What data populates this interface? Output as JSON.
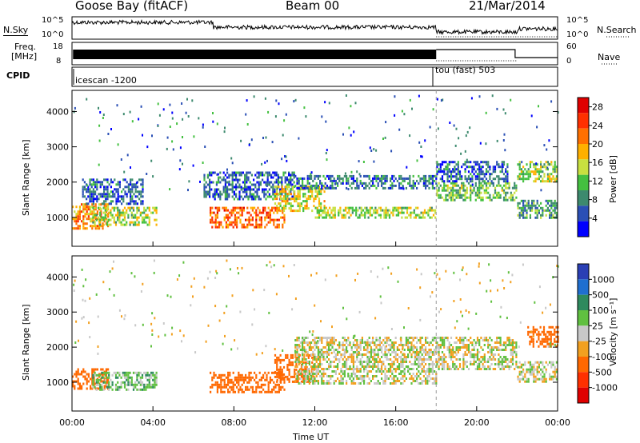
{
  "header": {
    "station": "Goose Bay (fitACF)",
    "beam": "Beam 00",
    "date": "21/Mar/2014"
  },
  "noise_panel": {
    "left_label": "N.Sky",
    "left_ticks": [
      "10^5",
      "10^0"
    ],
    "right_label": "N.Search",
    "right_ticks": [
      "10^5",
      "10^0"
    ]
  },
  "freq_panel": {
    "left_label_1": "Freq.",
    "left_label_2": "[MHz]",
    "left_ticks": [
      "18",
      "8"
    ],
    "right_label": "Nave",
    "right_ticks": [
      "60",
      "0"
    ]
  },
  "cpid_panel": {
    "label": "CPID",
    "segments": [
      {
        "name": "icescan -1200",
        "start_hour": 0
      },
      {
        "name": "tou (fast) 503",
        "start_hour": 18
      }
    ]
  },
  "colors": {
    "power_scale": [
      "#0000ff",
      "#2a4fb5",
      "#3d8a6e",
      "#44c040",
      "#c8e040",
      "#ffb000",
      "#ff7000",
      "#ff3000",
      "#e00000"
    ],
    "velocity_scale": [
      "#2a3fb5",
      "#1f6fd0",
      "#2e8a5e",
      "#60c040",
      "#c8c8c8",
      "#f2a020",
      "#ff6800",
      "#ff3000",
      "#e00000"
    ]
  },
  "chart_data": [
    {
      "type": "heatmap",
      "panel": "power",
      "xlabel": "Time UT",
      "ylabel": "Slant Range [km]",
      "xlim": [
        0,
        24
      ],
      "ylim": [
        180,
        4600
      ],
      "x_ticks": [
        "00:00",
        "04:00",
        "08:00",
        "12:00",
        "16:00",
        "20:00",
        "00:00"
      ],
      "y_ticks": [
        "1000",
        "2000",
        "3000",
        "4000"
      ],
      "colorbar_label": "Power [dB]",
      "colorbar_ticks": [
        "4",
        "8",
        "12",
        "16",
        "20",
        "24",
        "28"
      ],
      "colorbar_range": [
        0,
        30
      ],
      "regions": [
        {
          "t0": 0.0,
          "t1": 1.8,
          "r0": 700,
          "r1": 1400,
          "value": 20
        },
        {
          "t0": 1.0,
          "t1": 4.2,
          "r0": 800,
          "r1": 1300,
          "value": 14
        },
        {
          "t0": 0.5,
          "t1": 3.5,
          "r0": 1400,
          "r1": 2100,
          "value": 6
        },
        {
          "t0": 6.8,
          "t1": 10.5,
          "r0": 700,
          "r1": 1300,
          "value": 22
        },
        {
          "t0": 6.5,
          "t1": 11.0,
          "r0": 1500,
          "r1": 2300,
          "value": 6
        },
        {
          "t0": 10.0,
          "t1": 12.5,
          "r0": 1200,
          "r1": 1900,
          "value": 16
        },
        {
          "t0": 12.0,
          "t1": 18.0,
          "r0": 1000,
          "r1": 1300,
          "value": 14
        },
        {
          "t0": 11.0,
          "t1": 18.0,
          "r0": 1800,
          "r1": 2200,
          "value": 7
        },
        {
          "t0": 18.0,
          "t1": 22.0,
          "r0": 1500,
          "r1": 2000,
          "value": 12
        },
        {
          "t0": 18.0,
          "t1": 21.5,
          "r0": 2000,
          "r1": 2600,
          "value": 6
        },
        {
          "t0": 22.0,
          "t1": 24.0,
          "r0": 1000,
          "r1": 1500,
          "value": 10
        },
        {
          "t0": 22.0,
          "t1": 24.0,
          "r0": 2000,
          "r1": 2600,
          "value": 14
        }
      ]
    },
    {
      "type": "heatmap",
      "panel": "velocity",
      "xlabel": "Time UT",
      "ylabel": "Slant Range [km]",
      "xlim": [
        0,
        24
      ],
      "ylim": [
        180,
        4600
      ],
      "x_ticks": [
        "00:00",
        "04:00",
        "08:00",
        "12:00",
        "16:00",
        "20:00",
        "00:00"
      ],
      "y_ticks": [
        "1000",
        "2000",
        "3000",
        "4000"
      ],
      "colorbar_label": "Velocity [m s⁻¹]",
      "colorbar_ticks": [
        "1000",
        "500",
        "100",
        "25",
        "-25",
        "-100",
        "-500",
        "-1000"
      ],
      "regions": [
        {
          "t0": 0.0,
          "t1": 1.8,
          "r0": 800,
          "r1": 1400,
          "value": -400
        },
        {
          "t0": 1.0,
          "t1": 4.2,
          "r0": 800,
          "r1": 1300,
          "value": 60
        },
        {
          "t0": 6.8,
          "t1": 10.5,
          "r0": 700,
          "r1": 1300,
          "value": -300
        },
        {
          "t0": 10.0,
          "t1": 12.0,
          "r0": 1000,
          "r1": 1800,
          "value": -400
        },
        {
          "t0": 11.0,
          "t1": 18.0,
          "r0": 1000,
          "r1": 2300,
          "value": 0
        },
        {
          "t0": 18.0,
          "t1": 22.0,
          "r0": 1400,
          "r1": 2300,
          "value": 0
        },
        {
          "t0": 22.0,
          "t1": 24.0,
          "r0": 1000,
          "r1": 1600,
          "value": 0
        },
        {
          "t0": 22.5,
          "t1": 24.0,
          "r0": 2000,
          "r1": 2600,
          "value": -400
        }
      ]
    }
  ]
}
